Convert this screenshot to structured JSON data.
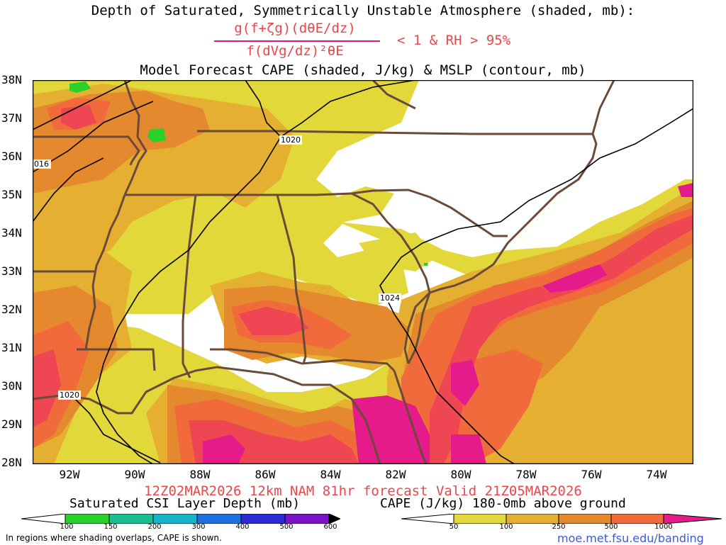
{
  "header": {
    "title1": "Depth of Saturated, Symmetrically Unstable Atmosphere (shaded, mb):",
    "formula_numerator": "g(f+ζg)(dθE/dz)",
    "formula_denominator": "f(dVg/dz)²θE",
    "formula_condition": "< 1 & RH > 95%",
    "title2": "Model Forecast CAPE (shaded, J/kg) & MSLP (contour, mb)"
  },
  "map": {
    "lat_labels": [
      "38N",
      "37N",
      "36N",
      "35N",
      "34N",
      "33N",
      "32N",
      "31N",
      "30N",
      "29N",
      "28N"
    ],
    "lon_labels": [
      "92W",
      "90W",
      "88W",
      "86W",
      "84W",
      "82W",
      "80W",
      "78W",
      "76W",
      "74W"
    ],
    "contour_labels": [
      "1020",
      "016",
      "1024",
      "1020"
    ],
    "colors": {
      "cape_50": "#e3d83a",
      "cape_100": "#e5b031",
      "cape_250": "#e5892e",
      "cape_500": "#f06a3b",
      "cape_1000": "#ee4652",
      "cape_max": "#e51a8b",
      "csi_100": "#2bd12b",
      "border": "#6b4a3a"
    }
  },
  "footer": {
    "valid_text": "12Z02MAR2026 12km NAM 81hr forecast Valid 21Z05MAR2026",
    "legend_left_title": "Saturated CSI Layer Depth (mb)",
    "legend_right_title": "CAPE (J/kg) 180-0mb above ground",
    "legend_left_ticks": [
      "100",
      "150",
      "200",
      "300",
      "400",
      "500",
      "600"
    ],
    "legend_right_ticks": [
      "50",
      "100",
      "250",
      "500",
      "1000"
    ],
    "note": "In regions where shading overlaps, CAPE is shown.",
    "site": "moe.met.fsu.edu/banding"
  }
}
